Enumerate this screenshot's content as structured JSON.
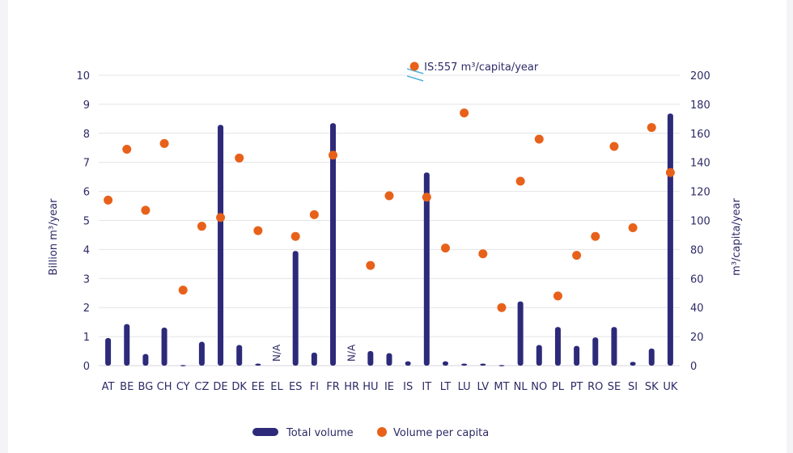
{
  "chart_data": {
    "type": "bar",
    "categories": [
      "AT",
      "BE",
      "BG",
      "CH",
      "CY",
      "CZ",
      "DE",
      "DK",
      "EE",
      "EL",
      "ES",
      "FI",
      "FR",
      "HR",
      "HU",
      "IE",
      "IS",
      "IT",
      "LT",
      "LU",
      "LV",
      "MT",
      "NL",
      "NO",
      "PL",
      "PT",
      "RO",
      "SE",
      "SI",
      "SK",
      "UK"
    ],
    "ylabel": "Billion m³/year",
    "y2label": "m³/capita/year",
    "ylim": [
      0,
      10
    ],
    "y2lim": [
      0,
      200
    ],
    "yticks": [
      "0",
      "1",
      "2",
      "3",
      "4",
      "5",
      "6",
      "7",
      "8",
      "9",
      "10"
    ],
    "y2ticks": [
      "0",
      "20",
      "40",
      "60",
      "80",
      "100",
      "120",
      "140",
      "160",
      "180",
      "200"
    ],
    "grid": true,
    "legend_position": "bottom",
    "series": [
      {
        "name": "Total volume",
        "type": "bar",
        "axis": "left",
        "color": "#2d2a7a",
        "values": [
          0.95,
          1.43,
          0.4,
          1.31,
          0.02,
          0.82,
          8.29,
          0.71,
          0.07,
          null,
          3.95,
          0.45,
          8.35,
          null,
          0.5,
          0.43,
          0.15,
          6.65,
          0.15,
          0.07,
          0.07,
          0.02,
          2.21,
          0.71,
          1.33,
          0.68,
          0.97,
          1.33,
          0.13,
          0.59,
          8.68
        ]
      },
      {
        "name": "Volume per capita",
        "type": "scatter",
        "axis": "right",
        "color": "#e8611a",
        "values": [
          114,
          149,
          107,
          153,
          52,
          96,
          102,
          143,
          93,
          null,
          89,
          104,
          145,
          null,
          69,
          117,
          null,
          116,
          81,
          174,
          77,
          40,
          127,
          156,
          48,
          76,
          89,
          151,
          95,
          164,
          133
        ]
      }
    ],
    "na_label": "N/A",
    "na_categories": [
      "EL",
      "HR"
    ],
    "annotation": {
      "category": "IS",
      "text": "IS:557 m³/capita/year"
    }
  }
}
